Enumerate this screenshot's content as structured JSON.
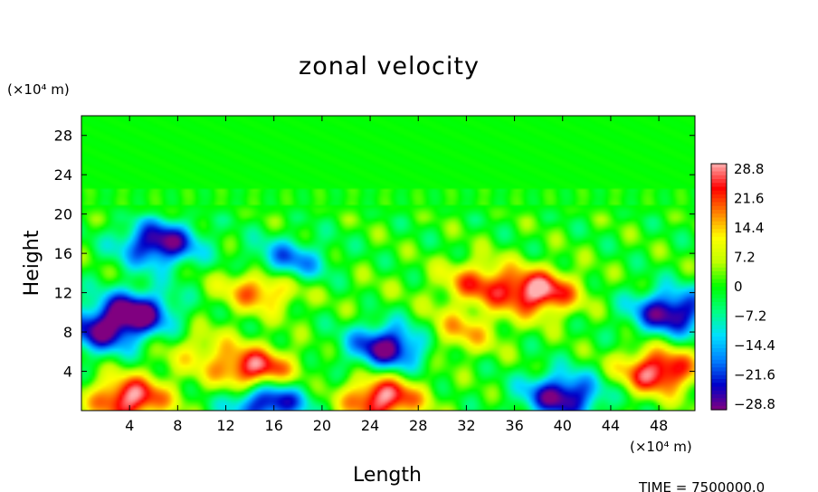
{
  "chart_data": {
    "type": "heatmap",
    "title": "zonal velocity",
    "xlabel": "Length",
    "ylabel": "Height",
    "x_unit": "(×10⁴ m)",
    "y_unit": "(×10⁴ m)",
    "xlim": [
      0,
      51
    ],
    "ylim": [
      0,
      30
    ],
    "x_ticks": [
      4,
      8,
      12,
      16,
      20,
      24,
      28,
      32,
      36,
      40,
      44,
      48
    ],
    "y_ticks": [
      4,
      8,
      12,
      16,
      20,
      24,
      28
    ],
    "colorbar": {
      "min": -28.8,
      "max": 28.8,
      "ticks": [
        "28.8",
        "21.6",
        "14.4",
        "7.2",
        "0",
        "−7.2",
        "−14.4",
        "−21.6",
        "−28.8"
      ],
      "colors": [
        "#800080",
        "#0000c8",
        "#0080ff",
        "#00e0ff",
        "#00ff80",
        "#00ff00",
        "#c0ff00",
        "#ffff00",
        "#ff8000",
        "#ff0000",
        "#ffb0b0"
      ]
    },
    "features": [
      {
        "x": 6.5,
        "y": 17,
        "value": -28.8
      },
      {
        "x": 4.5,
        "y": 10,
        "value": -28.8
      },
      {
        "x": 25.5,
        "y": 6.5,
        "value": -28.8
      },
      {
        "x": 15.5,
        "y": 1.0,
        "value": -28.8
      },
      {
        "x": 40,
        "y": 1.5,
        "value": -28.8
      },
      {
        "x": 49,
        "y": 10,
        "value": -28.8
      },
      {
        "x": 38,
        "y": 12,
        "value": 28.8
      },
      {
        "x": 25,
        "y": 1.2,
        "value": 28.8
      },
      {
        "x": 14.5,
        "y": 4,
        "value": 28.8
      },
      {
        "x": 4,
        "y": 1.2,
        "value": 28.8
      },
      {
        "x": 48,
        "y": 4,
        "value": 28.8
      },
      {
        "x": 15,
        "y": 12.5,
        "value": 21.6
      },
      {
        "x": 33,
        "y": 13,
        "value": 18
      },
      {
        "x": 31.5,
        "y": 8,
        "value": 14
      },
      {
        "x": 10,
        "y": 6,
        "value": 10
      },
      {
        "x": 24,
        "y": 12,
        "value": 2
      },
      {
        "x": 17,
        "y": 15,
        "value": -20
      },
      {
        "x": 1.5,
        "y": 8,
        "value": -22
      }
    ]
  },
  "footer": {
    "label": "TIME = 7500000.0"
  }
}
